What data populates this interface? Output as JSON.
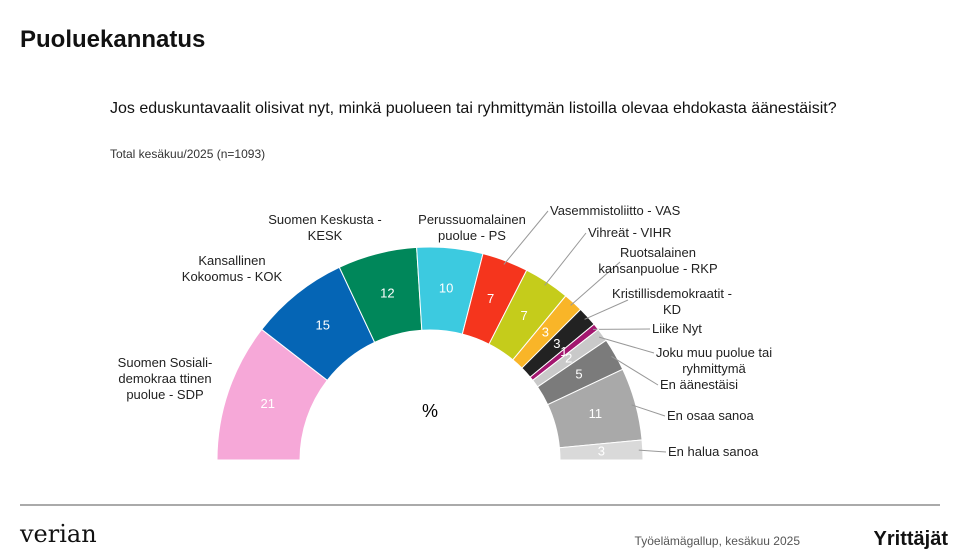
{
  "header": {
    "title": "Puoluekannatus"
  },
  "chart_data": {
    "type": "half-donut",
    "title": "Jos eduskuntavaalit olisivat nyt, minkä puolueen tai ryhmittymän listoilla olevaa ehdokasta äänestäisit?",
    "subtitle": "Total kesäkuu/2025 (n=1093)",
    "center_label": "%",
    "categories": [
      "Suomen Sosiali-\ndemokraa ttinen\npuolue - SDP",
      "Kansallinen\nKokoomus - KOK",
      "Suomen Keskusta -\nKESK",
      "Perussuomalainen\npuolue - PS",
      "Vasemmistoliitto - VAS",
      "Vihreät - VIHR",
      "Ruotsalainen\nkansanpuolue - RKP",
      "Kristillisdemokraatit -\nKD",
      "Liike Nyt",
      "Joku muu puolue tai\nryhmittymä",
      "En äänestäisi",
      "En osaa sanoa",
      "En halua sanoa"
    ],
    "values": [
      21,
      15,
      12,
      10,
      7,
      7,
      3,
      3,
      1,
      2,
      5,
      11,
      3
    ],
    "colors": [
      "#f6a8d8",
      "#0565b5",
      "#00875a",
      "#3ccae0",
      "#f5351d",
      "#c5cc1b",
      "#f9b528",
      "#222222",
      "#a3166f",
      "#c9c9c9",
      "#7b7b7b",
      "#a9a9a9",
      "#d9d9d9"
    ]
  },
  "footer": {
    "source": "Työelämägallup, kesäkuu 2025",
    "logo_left": "verian",
    "logo_right": "Yrittäjät"
  }
}
